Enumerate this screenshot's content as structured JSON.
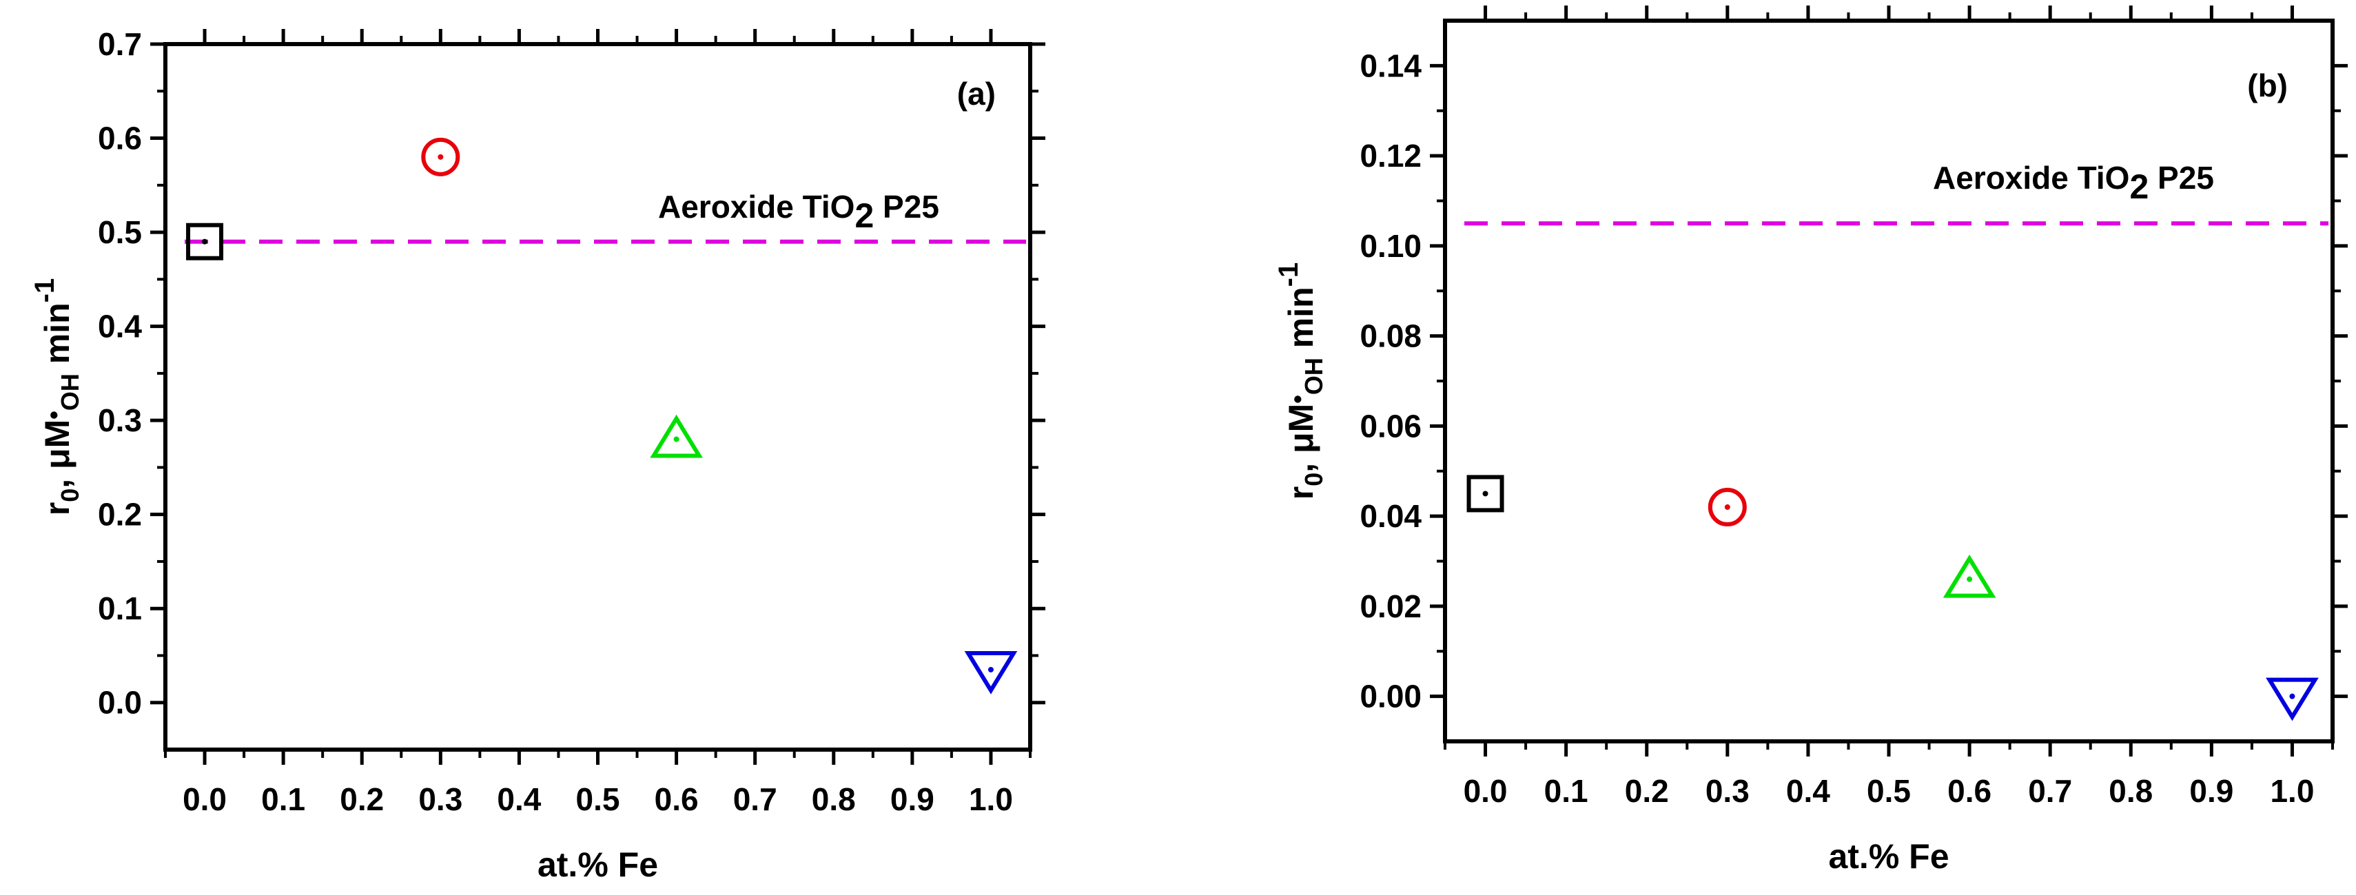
{
  "chart_data": [
    {
      "type": "scatter",
      "panel_label": "(a)",
      "xlabel": "at.% Fe",
      "ylabel": {
        "base": "r",
        "sub0": "0",
        "mid": ", μM",
        "dot": "•",
        "sub1": "OH",
        "unit": " min",
        "sup": "-1"
      },
      "xlim": [
        -0.05,
        1.05
      ],
      "ylim": [
        -0.05,
        0.7
      ],
      "xticks": [
        "0.0",
        "0.1",
        "0.2",
        "0.3",
        "0.4",
        "0.5",
        "0.6",
        "0.7",
        "0.8",
        "0.9",
        "1.0"
      ],
      "yticks": [
        "0.0",
        "0.1",
        "0.2",
        "0.3",
        "0.4",
        "0.5",
        "0.6",
        "0.7"
      ],
      "points": [
        {
          "x": 0.0,
          "y": 0.49,
          "marker": "square",
          "color": "#000000"
        },
        {
          "x": 0.3,
          "y": 0.58,
          "marker": "circle",
          "color": "#e8000b"
        },
        {
          "x": 0.6,
          "y": 0.28,
          "marker": "triangle-up",
          "color": "#00e000"
        },
        {
          "x": 1.0,
          "y": 0.035,
          "marker": "triangle-down",
          "color": "#0000e0"
        }
      ],
      "reference_line": {
        "y": 0.49,
        "color": "#e000e0",
        "style": "dashed"
      },
      "reference_label": {
        "main": "Aeroxide TiO",
        "sub": "2",
        "rest": " P25"
      }
    },
    {
      "type": "scatter",
      "panel_label": "(b)",
      "xlabel": "at.% Fe",
      "ylabel": {
        "base": "r",
        "sub0": "0",
        "mid": ", μM",
        "dot": "•",
        "sub1": "OH",
        "unit": " min",
        "sup": "-1"
      },
      "xlim": [
        -0.05,
        1.05
      ],
      "ylim": [
        -0.01,
        0.15
      ],
      "xticks": [
        "0.0",
        "0.1",
        "0.2",
        "0.3",
        "0.4",
        "0.5",
        "0.6",
        "0.7",
        "0.8",
        "0.9",
        "1.0"
      ],
      "yticks": [
        "0.00",
        "0.02",
        "0.04",
        "0.06",
        "0.08",
        "0.10",
        "0.12",
        "0.14"
      ],
      "points": [
        {
          "x": 0.0,
          "y": 0.045,
          "marker": "square",
          "color": "#000000"
        },
        {
          "x": 0.3,
          "y": 0.042,
          "marker": "circle",
          "color": "#e8000b"
        },
        {
          "x": 0.6,
          "y": 0.026,
          "marker": "triangle-up",
          "color": "#00e000"
        },
        {
          "x": 1.0,
          "y": 0.0,
          "marker": "triangle-down",
          "color": "#0000e0"
        }
      ],
      "reference_line": {
        "y": 0.105,
        "color": "#e000e0",
        "style": "dashed"
      },
      "reference_label": {
        "main": "Aeroxide TiO",
        "sub": "2",
        "rest": " P25"
      }
    }
  ]
}
